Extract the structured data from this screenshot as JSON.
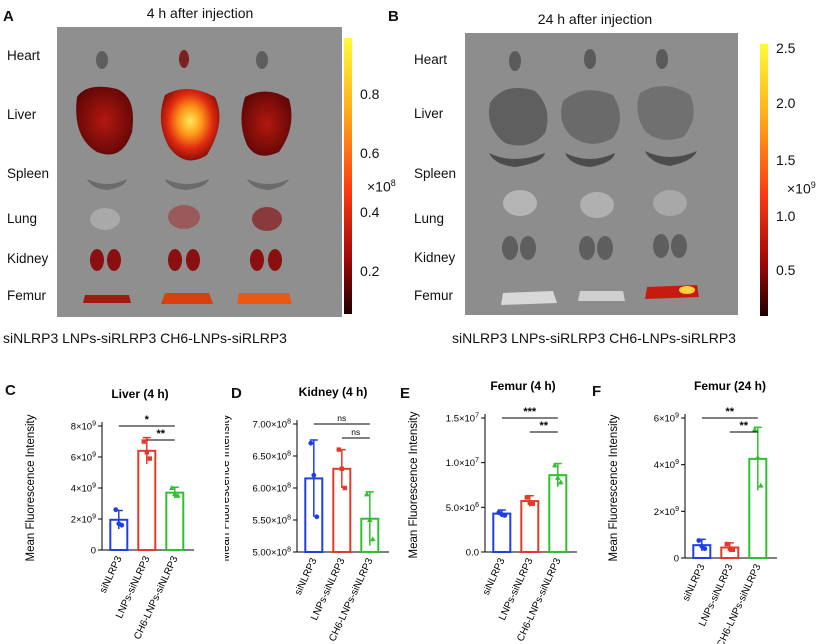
{
  "panelA": {
    "letter": "A",
    "title": "4 h after injection",
    "organs": [
      "Heart",
      "Liver",
      "Spleen",
      "Lung",
      "Kidney",
      "Femur"
    ],
    "groups_caption": "siNLRP3 LNPs-siRLRP3 CH6-LNPs-siRLRP3",
    "colorbar": {
      "ticks": [
        "0.8",
        "0.6",
        "0.4",
        "0.2"
      ],
      "multiplier_base": "×10",
      "multiplier_exp": "8"
    }
  },
  "panelB": {
    "letter": "B",
    "title": "24 h after injection",
    "organs": [
      "Heart",
      "Liver",
      "Spleen",
      "Lung",
      "Kidney",
      "Femur"
    ],
    "groups_caption": "siNLRP3 LNPs-siRLRP3 CH6-LNPs-siRLRP3",
    "colorbar": {
      "ticks": [
        "2.5",
        "2.0",
        "1.5",
        "1.0",
        "0.5"
      ],
      "multiplier_base": "×10",
      "multiplier_exp": "9"
    }
  },
  "colors": {
    "blue": "#1f3fe0",
    "red": "#e23a2a",
    "green": "#2fbf2f"
  },
  "chart_data": [
    {
      "letter": "C",
      "type": "bar",
      "title": "Liver (4 h)",
      "ylabel": "Mean Fluorescence Intensity",
      "categories": [
        "siNLRP3",
        "LNPs-siNLRP3",
        "CH6-LNPs-siNLRP3"
      ],
      "values": [
        1950000000.0,
        6400000000.0,
        3700000000.0
      ],
      "errors": [
        600000000.0,
        850000000.0,
        350000000.0
      ],
      "points": [
        [
          2600000000.0,
          1700000000.0,
          1600000000.0
        ],
        [
          7000000000.0,
          6300000000.0,
          5900000000.0
        ],
        [
          4000000000.0,
          3600000000.0,
          3500000000.0
        ]
      ],
      "ylim": [
        0,
        8000000000.0
      ],
      "yticks": [
        {
          "v": 0,
          "t": "0"
        },
        {
          "v": 2000000000.0,
          "b": "2×10",
          "e": "9"
        },
        {
          "v": 4000000000.0,
          "b": "4×10",
          "e": "9"
        },
        {
          "v": 6000000000.0,
          "b": "6×10",
          "e": "9"
        },
        {
          "v": 8000000000.0,
          "b": "8×10",
          "e": "9"
        }
      ],
      "significance": [
        {
          "from": 0,
          "to": 2,
          "label": "*"
        },
        {
          "from": 1,
          "to": 2,
          "label": "**"
        }
      ]
    },
    {
      "letter": "D",
      "type": "bar",
      "title": "Kidney (4 h)",
      "ylabel": "Mean Fluorescence Intensity",
      "categories": [
        "siNLRP3",
        "LNPs-siNLRP3",
        "CH6-LNPs-siNLRP3"
      ],
      "values": [
        615000000.0,
        630000000.0,
        552000000.0
      ],
      "errors": [
        60000000.0,
        30000000.0,
        42000000.0
      ],
      "points": [
        [
          670000000.0,
          620000000.0,
          555000000.0
        ],
        [
          660000000.0,
          630000000.0,
          600000000.0
        ],
        [
          590000000.0,
          550000000.0,
          520000000.0
        ]
      ],
      "ylim": [
        500000000.0,
        700000000.0
      ],
      "yticks": [
        {
          "v": 500000000.0,
          "b": "5.00×10",
          "e": "8"
        },
        {
          "v": 550000000.0,
          "b": "5.50×10",
          "e": "8"
        },
        {
          "v": 600000000.0,
          "b": "6.00×10",
          "e": "8"
        },
        {
          "v": 650000000.0,
          "b": "6.50×10",
          "e": "8"
        },
        {
          "v": 700000000.0,
          "b": "7.00×10",
          "e": "8"
        }
      ],
      "significance": [
        {
          "from": 0,
          "to": 2,
          "label": "ns"
        },
        {
          "from": 1,
          "to": 2,
          "label": "ns"
        }
      ]
    },
    {
      "letter": "E",
      "type": "bar",
      "title": "Femur (4 h)",
      "ylabel": "Mean Fluorescence Intensity",
      "categories": [
        "siNLRP3",
        "LNPs-siNLRP3",
        "CH6-LNPs-siNLRP3"
      ],
      "values": [
        4300000.0,
        5700000.0,
        8600000.0
      ],
      "errors": [
        400000.0,
        600000.0,
        1300000.0
      ],
      "points": [
        [
          4400000.0,
          4200000.0,
          4100000.0
        ],
        [
          6100000.0,
          5500000.0,
          5400000.0
        ],
        [
          9700000.0,
          8300000.0,
          7800000.0
        ]
      ],
      "ylim": [
        0,
        15000000.0
      ],
      "yticks": [
        {
          "v": 0,
          "t": "0.0"
        },
        {
          "v": 5000000.0,
          "b": "5.0×10",
          "e": "6"
        },
        {
          "v": 10000000.0,
          "b": "1.0×10",
          "e": "7"
        },
        {
          "v": 15000000.0,
          "b": "1.5×10",
          "e": "7"
        }
      ],
      "significance": [
        {
          "from": 0,
          "to": 2,
          "label": "***"
        },
        {
          "from": 1,
          "to": 2,
          "label": "**"
        }
      ]
    },
    {
      "letter": "F",
      "type": "bar",
      "title": "Femur (24 h)",
      "ylabel": "Mean Fluorescence Intensity",
      "categories": [
        "siNLRP3",
        "LNPs-siNLRP3",
        "CH6-LNPs-siNLRP3"
      ],
      "values": [
        550000000.0,
        450000000.0,
        4250000000.0
      ],
      "errors": [
        250000000.0,
        200000000.0,
        1350000000.0
      ],
      "points": [
        [
          750000000.0,
          500000000.0,
          400000000.0
        ],
        [
          600000000.0,
          400000000.0,
          350000000.0
        ],
        [
          5500000000.0,
          4300000000.0,
          3100000000.0
        ]
      ],
      "ylim": [
        0,
        6000000000.0
      ],
      "yticks": [
        {
          "v": 0,
          "t": "0"
        },
        {
          "v": 2000000000.0,
          "b": "2×10",
          "e": "9"
        },
        {
          "v": 4000000000.0,
          "b": "4×10",
          "e": "9"
        },
        {
          "v": 6000000000.0,
          "b": "6×10",
          "e": "9"
        }
      ],
      "significance": [
        {
          "from": 0,
          "to": 2,
          "label": "**"
        },
        {
          "from": 1,
          "to": 2,
          "label": "**"
        }
      ]
    }
  ]
}
